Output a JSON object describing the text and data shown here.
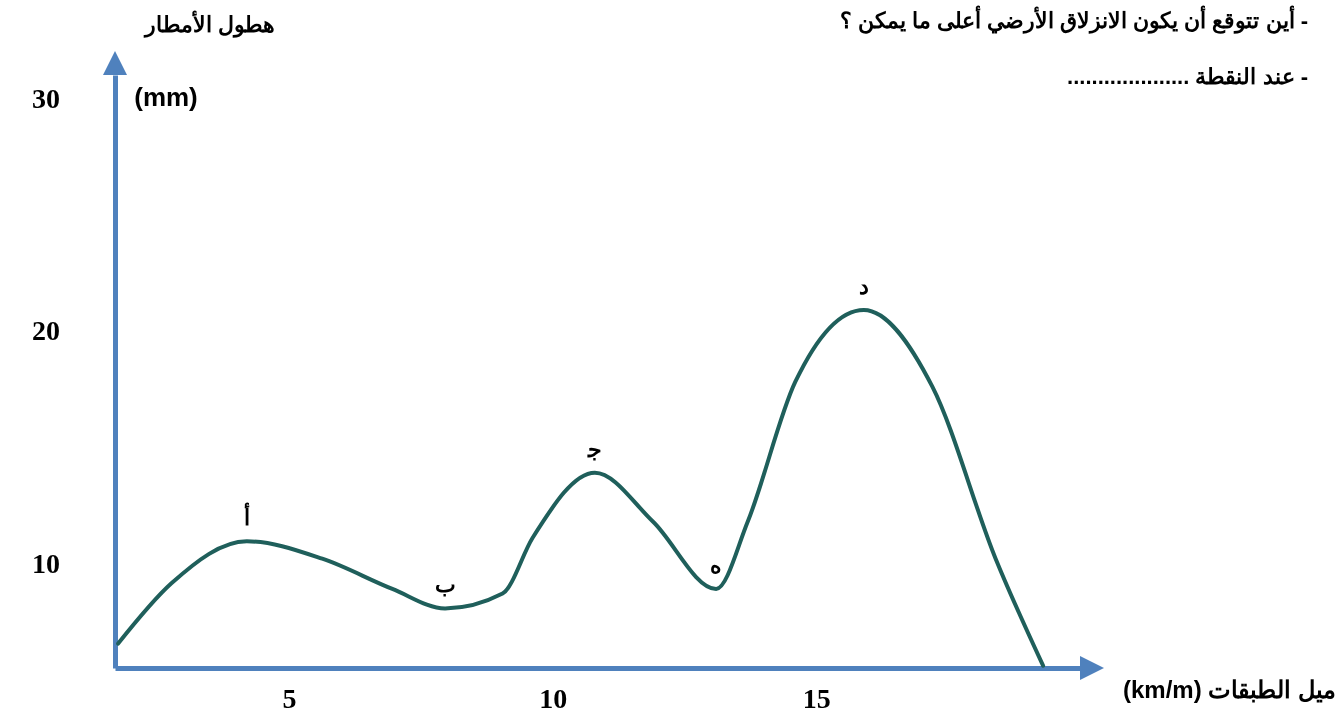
{
  "chart_data": {
    "type": "line",
    "xlabel": "ميل الطبقات (km/m)",
    "ylabel": "هطول الأمطار (mm)",
    "x": [
      1.76,
      2.77,
      4.2,
      5.63,
      6.96,
      7.96,
      9.05,
      9.62,
      10.8,
      11.9,
      13.1,
      13.7,
      14.6,
      15.9,
      17.2,
      18.4,
      19.3
    ],
    "series": [
      {
        "color": "#1f5f5b",
        "values": [
          6.55,
          9.14,
          10.95,
          10.2,
          8.9,
          8.06,
          8.7,
          11.1,
          13.9,
          11.8,
          8.9,
          11.8,
          17.8,
          20.9,
          17.6,
          10.2,
          5.6
        ]
      }
    ],
    "xlim": [
      1.7,
      20
    ],
    "ylim": [
      5.5,
      31
    ],
    "xticks": [
      5,
      10,
      15
    ],
    "yticks": [
      10,
      20,
      30
    ],
    "grid": false,
    "marker": "none",
    "line_style": "solid",
    "annotations": [
      "- أين تتوقع أن يكون الانزلاق الأرضي أعلى ما يمكن ؟",
      "- عند النقطة   ....................",
      {
        "text": "أ",
        "x": 4.2,
        "y": 10.95
      },
      {
        "text": "ب",
        "x": 7.96,
        "y": 8.06
      },
      {
        "text": "ﺟ",
        "x": 10.8,
        "y": 13.9
      },
      {
        "text": "ه",
        "x": 13.1,
        "y": 8.9
      },
      {
        "text": "د",
        "x": 15.9,
        "y": 20.9
      }
    ]
  }
}
